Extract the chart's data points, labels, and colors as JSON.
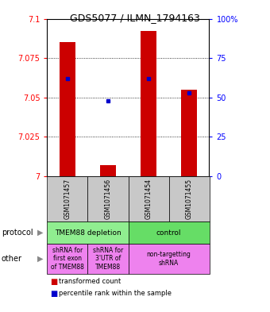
{
  "title": "GDS5077 / ILMN_1794163",
  "samples": [
    "GSM1071457",
    "GSM1071456",
    "GSM1071454",
    "GSM1071455"
  ],
  "red_values": [
    7.085,
    7.007,
    7.092,
    7.055
  ],
  "blue_percentiles": [
    62,
    48,
    62,
    53
  ],
  "ylim_left": [
    7.0,
    7.1
  ],
  "ylim_right": [
    0,
    100
  ],
  "left_ticks": [
    7.0,
    7.025,
    7.05,
    7.075,
    7.1
  ],
  "left_tick_labels": [
    "7",
    "7.025",
    "7.05",
    "7.075",
    "7.1"
  ],
  "right_ticks": [
    0,
    25,
    50,
    75,
    100
  ],
  "right_tick_labels": [
    "0",
    "25",
    "50",
    "75",
    "100%"
  ],
  "protocol_labels": [
    "TMEM88 depletion",
    "control"
  ],
  "other_labels": [
    "shRNA for\nfirst exon\nof TMEM88",
    "shRNA for\n3'UTR of\nTMEM88",
    "non-targetting\nshRNA"
  ],
  "protocol_colors": [
    "#90EE90",
    "#66DD66"
  ],
  "sample_bg_color": "#C8C8C8",
  "red_color": "#CC0000",
  "blue_color": "#0000CC"
}
